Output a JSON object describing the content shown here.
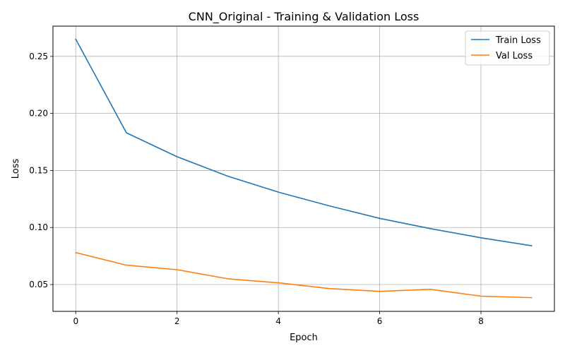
{
  "chart_data": {
    "type": "line",
    "title": "CNN_Original - Training & Validation Loss",
    "xlabel": "Epoch",
    "ylabel": "Loss",
    "x": [
      0,
      1,
      2,
      3,
      4,
      5,
      6,
      7,
      8,
      9
    ],
    "xlim": [
      -0.45,
      9.45
    ],
    "ylim": [
      0.0265,
      0.2765
    ],
    "xticks": [
      0,
      2,
      4,
      6,
      8
    ],
    "xtick_labels": [
      "0",
      "2",
      "4",
      "6",
      "8"
    ],
    "yticks": [
      0.05,
      0.1,
      0.15,
      0.2,
      0.25
    ],
    "ytick_labels": [
      "0.05",
      "0.10",
      "0.15",
      "0.20",
      "0.25"
    ],
    "grid": true,
    "legend_position": "top-right",
    "series": [
      {
        "name": "Train Loss",
        "color": "#1f77b4",
        "values": [
          0.265,
          0.183,
          0.162,
          0.145,
          0.131,
          0.119,
          0.108,
          0.099,
          0.091,
          0.084
        ]
      },
      {
        "name": "Val Loss",
        "color": "#ff7f0e",
        "values": [
          0.078,
          0.067,
          0.063,
          0.055,
          0.0515,
          0.0465,
          0.044,
          0.0458,
          0.0398,
          0.0385
        ]
      }
    ]
  }
}
